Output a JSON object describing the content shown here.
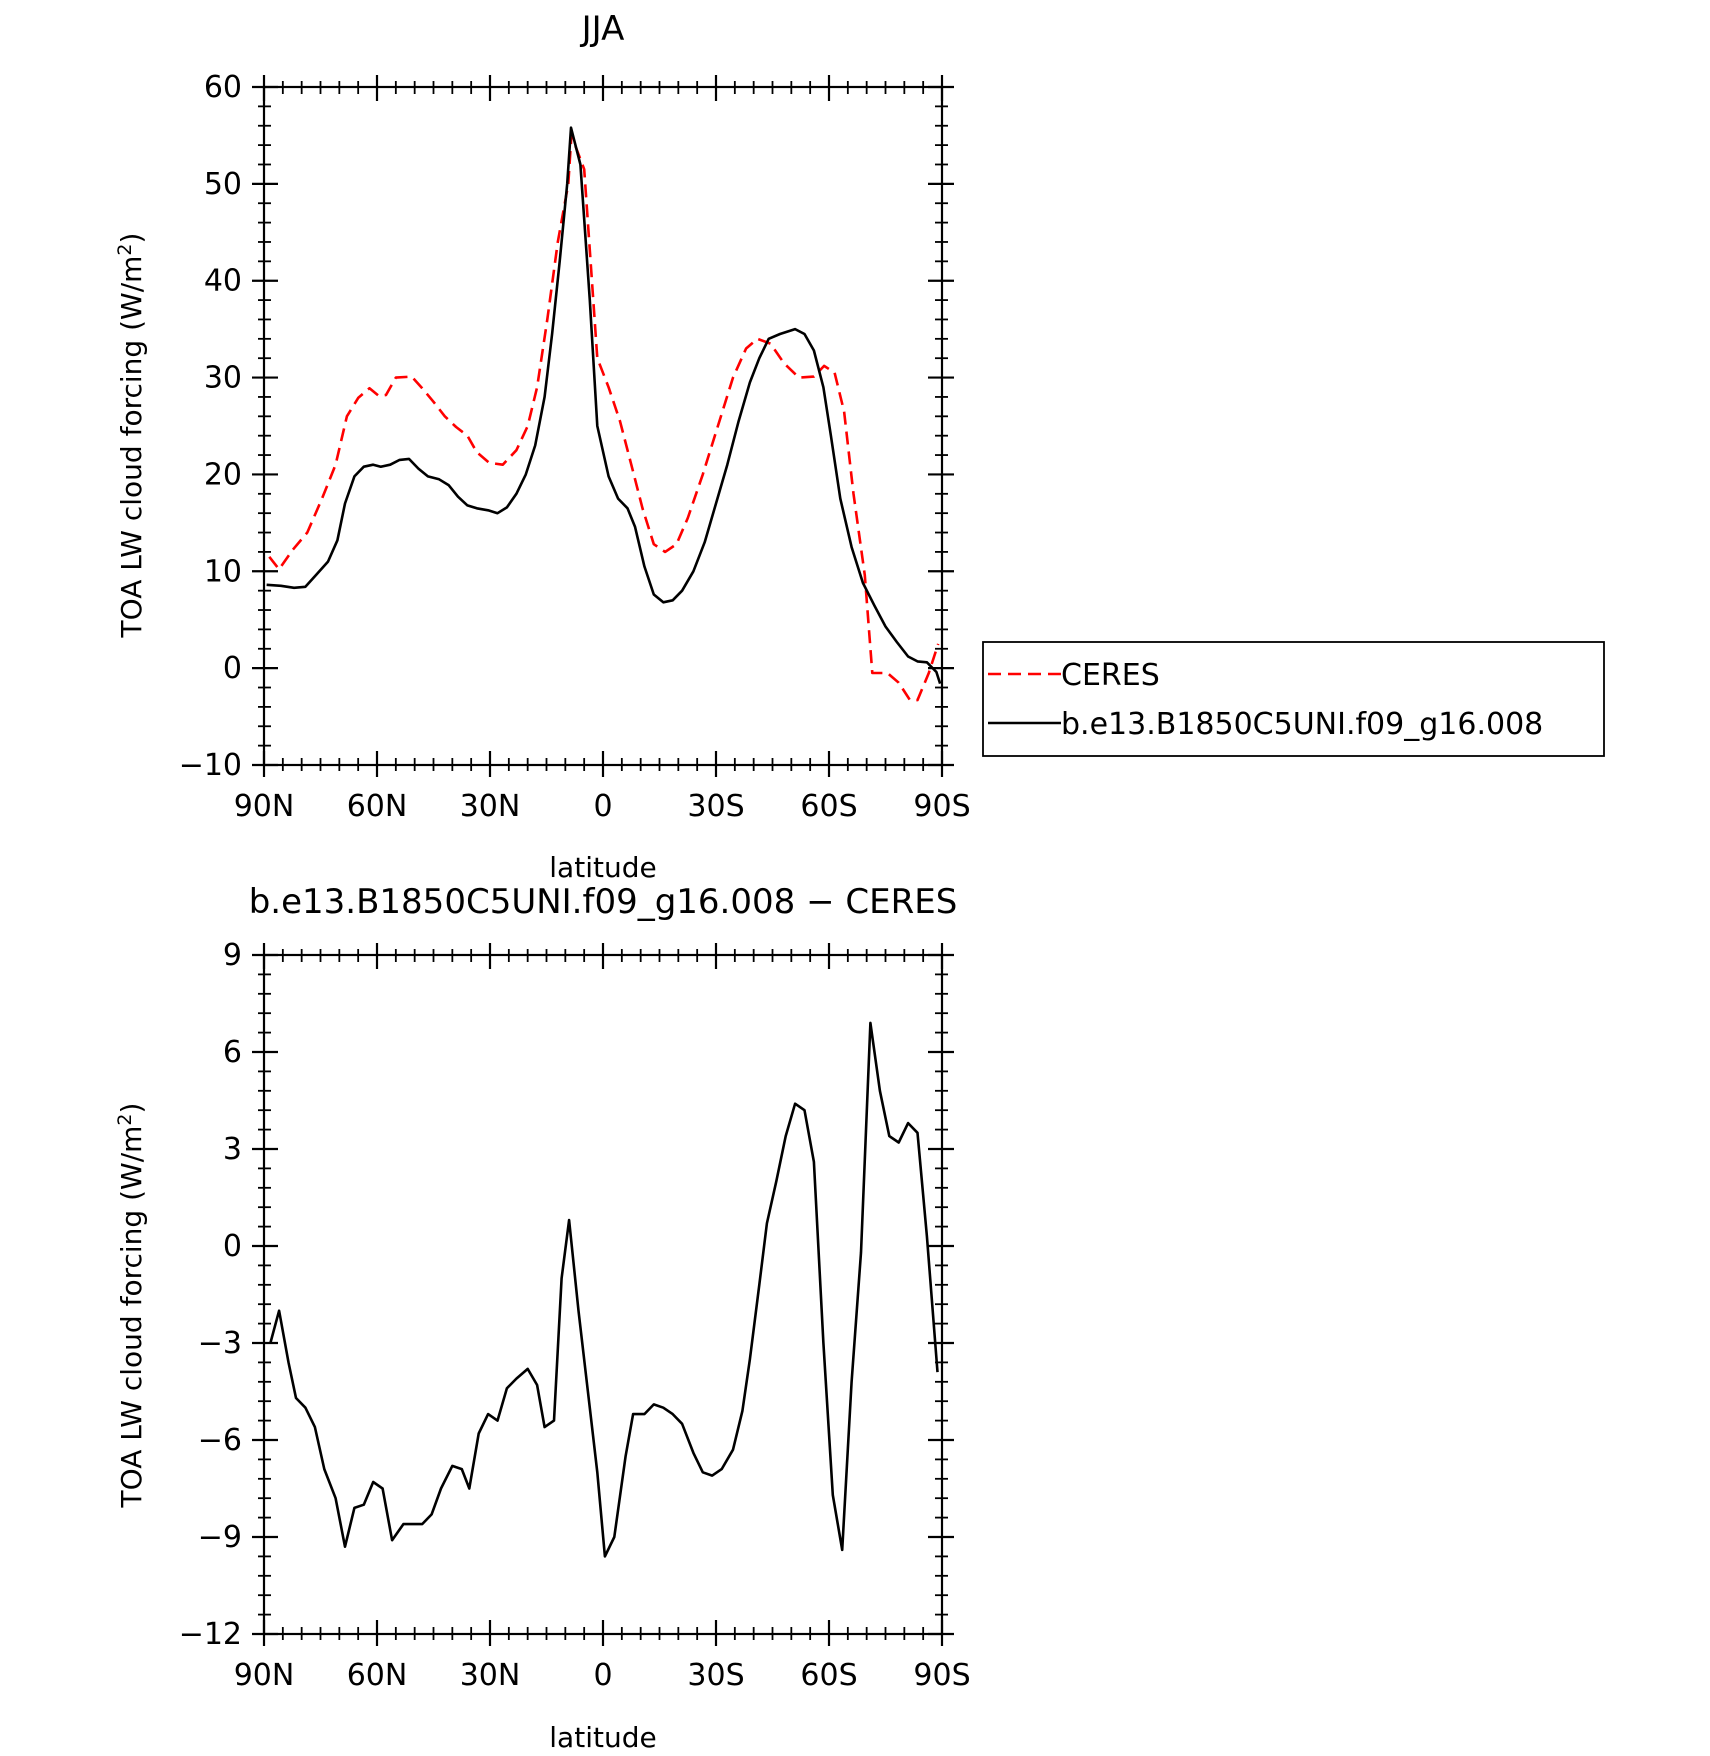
{
  "chart_data": [
    {
      "type": "line",
      "title": "JJA",
      "xlabel": "latitude",
      "ylabel": "TOA LW cloud forcing (W/m²)",
      "xlim": [
        90,
        -90
      ],
      "ylim": [
        -10,
        60
      ],
      "x_ticks": [
        90,
        60,
        30,
        0,
        -30,
        -60,
        -90
      ],
      "x_tick_labels": [
        "90N",
        "60N",
        "30N",
        "0",
        "30S",
        "60S",
        "90S"
      ],
      "y_ticks": [
        -10,
        0,
        10,
        20,
        30,
        40,
        50,
        60
      ],
      "y_tick_labels": [
        "−10",
        "0",
        "10",
        "20",
        "30",
        "40",
        "50",
        "60"
      ],
      "legend_position": "right",
      "series": [
        {
          "name": "CERES",
          "color": "#ff0000",
          "dash": "dashed",
          "points": [
            [
              88.6,
              11.5
            ],
            [
              86.0,
              10.2
            ],
            [
              82.4,
              12.2
            ],
            [
              78.5,
              14.0
            ],
            [
              74.6,
              17.5
            ],
            [
              71.0,
              21.0
            ],
            [
              68.0,
              26.0
            ],
            [
              65.0,
              27.9
            ],
            [
              62.0,
              28.9
            ],
            [
              59.5,
              28.1
            ],
            [
              57.6,
              28.2
            ],
            [
              55.0,
              30.0
            ],
            [
              50.8,
              30.1
            ],
            [
              48.0,
              28.9
            ],
            [
              45.0,
              27.5
            ],
            [
              42.0,
              26.0
            ],
            [
              39.0,
              24.9
            ],
            [
              36.0,
              24.0
            ],
            [
              33.5,
              22.3
            ],
            [
              30.2,
              21.2
            ],
            [
              26.6,
              21.0
            ],
            [
              23.0,
              22.5
            ],
            [
              20.0,
              25.0
            ],
            [
              17.5,
              29.0
            ],
            [
              14.8,
              36.0
            ],
            [
              12.0,
              44.0
            ],
            [
              9.2,
              50.0
            ],
            [
              8.4,
              55.0
            ],
            [
              5.0,
              51.5
            ],
            [
              1.5,
              32.0
            ],
            [
              -1.5,
              29.0
            ],
            [
              -4.5,
              25.5
            ],
            [
              -7.5,
              21.0
            ],
            [
              -10.5,
              16.5
            ],
            [
              -13.5,
              12.8
            ],
            [
              -16.5,
              12.0
            ],
            [
              -19.5,
              12.8
            ],
            [
              -22.5,
              15.5
            ],
            [
              -26.5,
              20.0
            ],
            [
              -30.5,
              25.0
            ],
            [
              -34.5,
              30.0
            ],
            [
              -38.0,
              33.0
            ],
            [
              -41.0,
              34.0
            ],
            [
              -44.5,
              33.5
            ],
            [
              -48.0,
              31.5
            ],
            [
              -52.0,
              30.0
            ],
            [
              -56.0,
              30.1
            ],
            [
              -58.7,
              31.2
            ],
            [
              -61.5,
              30.5
            ],
            [
              -64.0,
              26.5
            ],
            [
              -66.5,
              18.0
            ],
            [
              -69.5,
              9.6
            ],
            [
              -71.5,
              -0.5
            ],
            [
              -75.5,
              -0.5
            ],
            [
              -78.5,
              -1.5
            ],
            [
              -81.5,
              -3.3
            ],
            [
              -83.5,
              -3.3
            ],
            [
              -86.5,
              -0.5
            ],
            [
              -89.0,
              2.5
            ]
          ]
        },
        {
          "name": "b.e13.B1850C5UNI.f09_g16.008",
          "color": "#000000",
          "dash": "solid",
          "points": [
            [
              89.3,
              8.6
            ],
            [
              85.5,
              8.5
            ],
            [
              82.0,
              8.3
            ],
            [
              79.0,
              8.4
            ],
            [
              76.0,
              9.7
            ],
            [
              73.0,
              11.0
            ],
            [
              70.5,
              13.2
            ],
            [
              68.5,
              17.0
            ],
            [
              66.0,
              19.8
            ],
            [
              63.5,
              20.8
            ],
            [
              61.0,
              21.0
            ],
            [
              59.0,
              20.8
            ],
            [
              56.5,
              21.0
            ],
            [
              54.0,
              21.5
            ],
            [
              51.5,
              21.6
            ],
            [
              49.0,
              20.6
            ],
            [
              46.5,
              19.8
            ],
            [
              43.5,
              19.5
            ],
            [
              41.0,
              18.9
            ],
            [
              38.5,
              17.7
            ],
            [
              36.0,
              16.8
            ],
            [
              33.5,
              16.5
            ],
            [
              30.5,
              16.3
            ],
            [
              28.0,
              16.0
            ],
            [
              25.5,
              16.6
            ],
            [
              23.0,
              18.0
            ],
            [
              20.5,
              20.0
            ],
            [
              18.0,
              23.0
            ],
            [
              15.5,
              28.0
            ],
            [
              13.5,
              34.5
            ],
            [
              11.5,
              42.0
            ],
            [
              9.5,
              50.0
            ],
            [
              8.5,
              55.8
            ],
            [
              6.0,
              52.0
            ],
            [
              3.5,
              38.0
            ],
            [
              1.5,
              25.0
            ],
            [
              -1.5,
              19.8
            ],
            [
              -4.0,
              17.5
            ],
            [
              -6.5,
              16.5
            ],
            [
              -8.5,
              14.6
            ],
            [
              -11.0,
              10.5
            ],
            [
              -13.5,
              7.6
            ],
            [
              -16.0,
              6.8
            ],
            [
              -18.5,
              7.0
            ],
            [
              -21.0,
              8.0
            ],
            [
              -24.0,
              10.0
            ],
            [
              -27.0,
              13.0
            ],
            [
              -30.0,
              17.0
            ],
            [
              -33.0,
              21.0
            ],
            [
              -36.0,
              25.5
            ],
            [
              -39.0,
              29.5
            ],
            [
              -41.5,
              32.0
            ],
            [
              -44.0,
              34.0
            ],
            [
              -47.0,
              34.5
            ],
            [
              -51.0,
              35.0
            ],
            [
              -53.5,
              34.5
            ],
            [
              -56.0,
              32.8
            ],
            [
              -58.5,
              29.0
            ],
            [
              -60.5,
              24.0
            ],
            [
              -63.0,
              17.5
            ],
            [
              -66.0,
              12.5
            ],
            [
              -69.0,
              8.8
            ],
            [
              -72.0,
              6.5
            ],
            [
              -75.0,
              4.3
            ],
            [
              -78.0,
              2.7
            ],
            [
              -81.0,
              1.2
            ],
            [
              -83.5,
              0.7
            ],
            [
              -86.0,
              0.6
            ],
            [
              -88.5,
              -0.4
            ],
            [
              -89.5,
              -1.6
            ]
          ]
        }
      ]
    },
    {
      "type": "line",
      "title": "b.e13.B1850C5UNI.f09_g16.008 − CERES",
      "xlabel": "latitude",
      "ylabel": "TOA LW cloud forcing (W/m²)",
      "xlim": [
        90,
        -90
      ],
      "ylim": [
        -12,
        9
      ],
      "x_ticks": [
        90,
        60,
        30,
        0,
        -30,
        -60,
        -90
      ],
      "x_tick_labels": [
        "90N",
        "60N",
        "30N",
        "0",
        "30S",
        "60S",
        "90S"
      ],
      "y_ticks": [
        -12,
        -9,
        -6,
        -3,
        0,
        3,
        6,
        9
      ],
      "y_tick_labels": [
        "−12",
        "−9",
        "−6",
        "−3",
        "0",
        "3",
        "6",
        "9"
      ],
      "series": [
        {
          "color": "#000000",
          "dash": "solid",
          "points": [
            [
              88.3,
              -3.0
            ],
            [
              86.0,
              -2.0
            ],
            [
              83.5,
              -3.6
            ],
            [
              81.5,
              -4.7
            ],
            [
              79.0,
              -5.0
            ],
            [
              76.5,
              -5.6
            ],
            [
              74.0,
              -6.9
            ],
            [
              71.0,
              -7.8
            ],
            [
              68.5,
              -9.3
            ],
            [
              66.0,
              -8.1
            ],
            [
              63.5,
              -8.0
            ],
            [
              61.0,
              -7.3
            ],
            [
              58.5,
              -7.5
            ],
            [
              56.0,
              -9.1
            ],
            [
              53.0,
              -8.6
            ],
            [
              50.5,
              -8.6
            ],
            [
              48.0,
              -8.6
            ],
            [
              45.5,
              -8.3
            ],
            [
              43.0,
              -7.5
            ],
            [
              40.0,
              -6.8
            ],
            [
              37.5,
              -6.9
            ],
            [
              35.5,
              -7.5
            ],
            [
              33.0,
              -5.8
            ],
            [
              30.5,
              -5.2
            ],
            [
              28.0,
              -5.4
            ],
            [
              25.5,
              -4.4
            ],
            [
              23.0,
              -4.1
            ],
            [
              20.0,
              -3.8
            ],
            [
              17.5,
              -4.3
            ],
            [
              15.5,
              -5.6
            ],
            [
              13.0,
              -5.4
            ],
            [
              11.0,
              -1.0
            ],
            [
              9.0,
              0.8
            ],
            [
              6.5,
              -2.0
            ],
            [
              4.0,
              -4.5
            ],
            [
              1.5,
              -7.0
            ],
            [
              -0.5,
              -9.6
            ],
            [
              -3.0,
              -9.0
            ],
            [
              -6.0,
              -6.5
            ],
            [
              -8.0,
              -5.2
            ],
            [
              -11.0,
              -5.2
            ],
            [
              -13.5,
              -4.9
            ],
            [
              -16.0,
              -5.0
            ],
            [
              -18.5,
              -5.2
            ],
            [
              -21.0,
              -5.5
            ],
            [
              -24.0,
              -6.4
            ],
            [
              -26.5,
              -7.0
            ],
            [
              -29.0,
              -7.1
            ],
            [
              -31.5,
              -6.9
            ],
            [
              -34.5,
              -6.3
            ],
            [
              -37.0,
              -5.1
            ],
            [
              -39.0,
              -3.5
            ],
            [
              -41.5,
              -1.2
            ],
            [
              -43.5,
              0.7
            ],
            [
              -46.0,
              2.0
            ],
            [
              -48.5,
              3.4
            ],
            [
              -51.0,
              4.4
            ],
            [
              -53.5,
              4.2
            ],
            [
              -56.0,
              2.6
            ],
            [
              -58.5,
              -3.0
            ],
            [
              -61.0,
              -7.7
            ],
            [
              -63.5,
              -9.4
            ],
            [
              -66.0,
              -4.2
            ],
            [
              -68.5,
              -0.2
            ],
            [
              -71.0,
              6.9
            ],
            [
              -73.5,
              4.8
            ],
            [
              -76.0,
              3.4
            ],
            [
              -78.5,
              3.2
            ],
            [
              -81.0,
              3.8
            ],
            [
              -83.5,
              3.5
            ],
            [
              -86.0,
              0.3
            ],
            [
              -88.8,
              -3.9
            ]
          ]
        }
      ]
    }
  ]
}
